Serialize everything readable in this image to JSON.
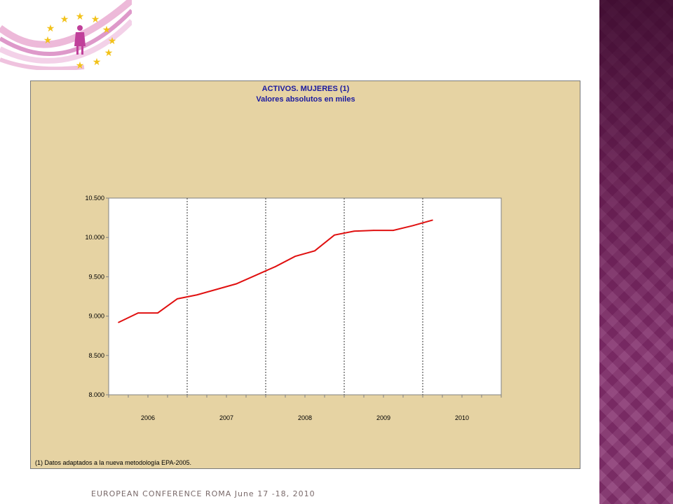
{
  "footer": {
    "text": "EUROPEAN CONFERENCE ROMA June 17 -18, 2010"
  },
  "colors": {
    "chart_bg": "#e6d3a3",
    "line": "#e01010",
    "title": "#1a1aa0",
    "side_panel": "#7a2a62"
  },
  "logo": {
    "icon": "eu-women-stars-logo"
  },
  "chart_data": {
    "type": "line",
    "title": "ACTIVOS. MUJERES (1)",
    "subtitle": "Valores absolutos en miles",
    "footnote": "(1) Datos adaptados a la nueva metodología EPA-2005.",
    "xlabel": "",
    "ylabel": "",
    "ylim": [
      8000,
      10500
    ],
    "y_ticks": [
      8000,
      8500,
      9000,
      9500,
      10000,
      10500
    ],
    "y_tick_labels": [
      "8.000",
      "8.500",
      "9.000",
      "9.500",
      "10.000",
      "10.500"
    ],
    "x_ticks": [
      "2006",
      "2007",
      "2008",
      "2009",
      "2010"
    ],
    "periods_per_year": 4,
    "year_separators": "dotted",
    "grid": false,
    "series": [
      {
        "x": [
          "2006 T1",
          "2006 T2",
          "2006 T3",
          "2006 T4",
          "2007 T1",
          "2007 T2",
          "2007 T3",
          "2007 T4",
          "2008 T1",
          "2008 T2",
          "2008 T3",
          "2008 T4",
          "2009 T1",
          "2009 T2",
          "2009 T3",
          "2009 T4",
          "2010 T1"
        ],
        "values": [
          8920,
          9040,
          9040,
          9220,
          9270,
          9340,
          9410,
          9520,
          9630,
          9760,
          9830,
          10030,
          10080,
          10090,
          10090,
          10150,
          10220
        ]
      }
    ]
  }
}
